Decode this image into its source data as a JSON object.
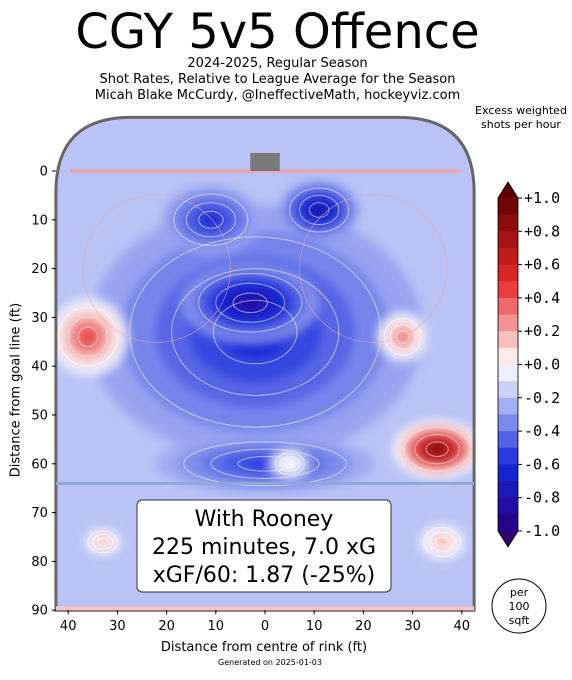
{
  "header": {
    "title": "CGY 5v5 Offence",
    "season": "2024-2025, Regular Season",
    "description": "Shot Rates, Relative to League Average for the Season",
    "credit": "Micah Blake McCurdy, @IneffectiveMath, hockeyviz.com"
  },
  "footer": {
    "generated": "Generated on 2025-01-03"
  },
  "infobox": {
    "line1": "With Rooney",
    "line2": "225 minutes, 7.0 xG",
    "line3": "xGF/60: 1.87 (-25%)"
  },
  "unit_badge": {
    "line1": "per",
    "line2": "100",
    "line3": "sqft"
  },
  "colors": {
    "above_average": "#d7191c",
    "below_average": "#1a2fe0",
    "neutral": "#ffffff",
    "board": "#666666"
  },
  "chart_data": {
    "type": "heatmap",
    "title": "CGY 5v5 Offence",
    "xlabel": "Distance from centre of rink (ft)",
    "ylabel": "Distance from goal line (ft)",
    "x_ticks": [
      40,
      30,
      20,
      10,
      0,
      10,
      20,
      30,
      40
    ],
    "x_tick_values": [
      -40,
      -30,
      -20,
      -10,
      0,
      10,
      20,
      30,
      40
    ],
    "y_ticks": [
      0,
      10,
      20,
      30,
      40,
      50,
      60,
      70,
      80,
      90
    ],
    "xlim": [
      -42.5,
      42.5
    ],
    "ylim": [
      -11,
      90
    ],
    "colorbar": {
      "label": "Excess weighted shots per hour",
      "range": [
        -1.0,
        1.0
      ],
      "ticks": [
        "+1.0",
        "+0.8",
        "+0.6",
        "+0.4",
        "+0.2",
        "+0.0",
        "-0.2",
        "-0.4",
        "-0.6",
        "-0.8",
        "-1.0"
      ],
      "tick_values": [
        1.0,
        0.8,
        0.6,
        0.4,
        0.2,
        0.0,
        -0.2,
        -0.4,
        -0.6,
        -0.8,
        -1.0
      ]
    },
    "background_level": -0.2,
    "regions": [
      {
        "cx": -2,
        "cy": 33,
        "rx": 34,
        "ry": 26,
        "value": -0.6
      },
      {
        "cx": -3,
        "cy": 27,
        "rx": 14,
        "ry": 8,
        "value": -0.85
      },
      {
        "cx": 11,
        "cy": 8,
        "rx": 8,
        "ry": 6,
        "value": -0.8
      },
      {
        "cx": -11,
        "cy": 10,
        "rx": 10,
        "ry": 7,
        "value": -0.6
      },
      {
        "cx": 0,
        "cy": 60,
        "rx": 22,
        "ry": 6,
        "value": -0.55
      },
      {
        "cx": -36,
        "cy": 34,
        "rx": 8,
        "ry": 8,
        "value": 0.45
      },
      {
        "cx": 28,
        "cy": 34,
        "rx": 5,
        "ry": 5,
        "value": 0.35
      },
      {
        "cx": 35,
        "cy": 57,
        "rx": 9,
        "ry": 6,
        "value": 0.9
      },
      {
        "cx": 36,
        "cy": 76,
        "rx": 5,
        "ry": 4,
        "value": 0.2
      },
      {
        "cx": -33,
        "cy": 76,
        "rx": 4,
        "ry": 3,
        "value": 0.2
      },
      {
        "cx": 5,
        "cy": 60,
        "rx": 4,
        "ry": 3,
        "value": 0.0
      }
    ]
  }
}
